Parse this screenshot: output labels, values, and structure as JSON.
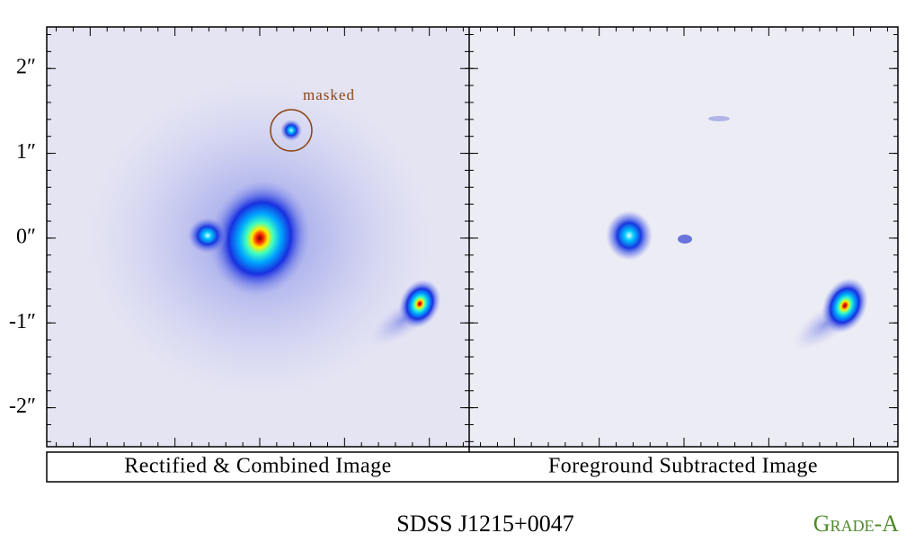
{
  "panels": [
    {
      "caption": "Rectified & Combined Image",
      "annotation": "masked"
    },
    {
      "caption": "Foreground Subtracted Image"
    }
  ],
  "y_axis": {
    "ylim": [
      -2.46,
      2.49
    ],
    "ticks": [
      {
        "value": 2,
        "label": "2″"
      },
      {
        "value": 1,
        "label": "1″"
      },
      {
        "value": 0,
        "label": "0″"
      },
      {
        "value": -1,
        "label": "-1″"
      },
      {
        "value": -2,
        "label": "-2″"
      }
    ]
  },
  "footer": {
    "name": "SDSS J1215+0047",
    "grade": "Grade-A"
  }
}
